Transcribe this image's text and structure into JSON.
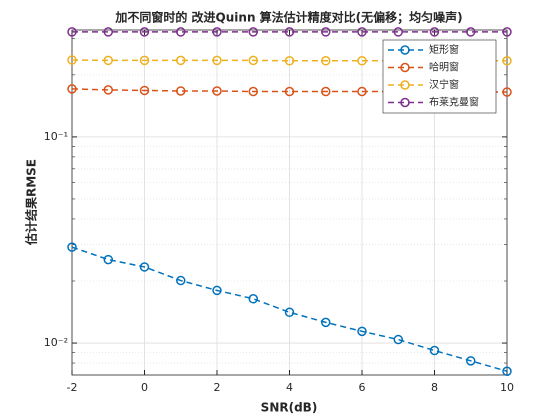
{
  "chart_data": {
    "type": "line",
    "title": "加不同窗时的 改进Quinn 算法估计精度对比(无偏移；均匀噪声)",
    "xlabel": "SNR(dB)",
    "ylabel": "估计结果RMSE",
    "x": [
      -2,
      -1,
      0,
      1,
      2,
      3,
      4,
      5,
      6,
      7,
      8,
      9,
      10
    ],
    "series": [
      {
        "name": "矩形窗",
        "color": "#0072BD",
        "values": [
          0.0292,
          0.0254,
          0.0234,
          0.0201,
          0.018,
          0.0164,
          0.0141,
          0.0126,
          0.0114,
          0.0104,
          0.0092,
          0.0082,
          0.0073
        ]
      },
      {
        "name": "哈明窗",
        "color": "#D95319",
        "values": [
          0.171,
          0.169,
          0.168,
          0.167,
          0.167,
          0.166,
          0.166,
          0.166,
          0.166,
          0.166,
          0.165,
          0.165,
          0.165
        ]
      },
      {
        "name": "汉宁窗",
        "color": "#EDB120",
        "values": [
          0.236,
          0.235,
          0.235,
          0.235,
          0.235,
          0.235,
          0.234,
          0.234,
          0.234,
          0.234,
          0.234,
          0.234,
          0.234
        ]
      },
      {
        "name": "布莱克曼窗",
        "color": "#7E2F8E",
        "values": [
          0.323,
          0.323,
          0.323,
          0.323,
          0.323,
          0.323,
          0.323,
          0.323,
          0.323,
          0.323,
          0.323,
          0.323,
          0.323
        ]
      }
    ],
    "xlim": [
      -2,
      10
    ],
    "xticks": [
      -2,
      0,
      2,
      4,
      6,
      8,
      10
    ],
    "ylim": [
      0.007,
      0.33
    ],
    "ylog": true,
    "yticks": [
      {
        "value": 0.01,
        "label": "10⁻²"
      },
      {
        "value": 0.1,
        "label": "10⁻¹"
      }
    ],
    "yminorticks": [
      0.008,
      0.009,
      0.02,
      0.03,
      0.04,
      0.05,
      0.06,
      0.07,
      0.08,
      0.09,
      0.2,
      0.3
    ],
    "grid": true,
    "legend": "northeast"
  }
}
